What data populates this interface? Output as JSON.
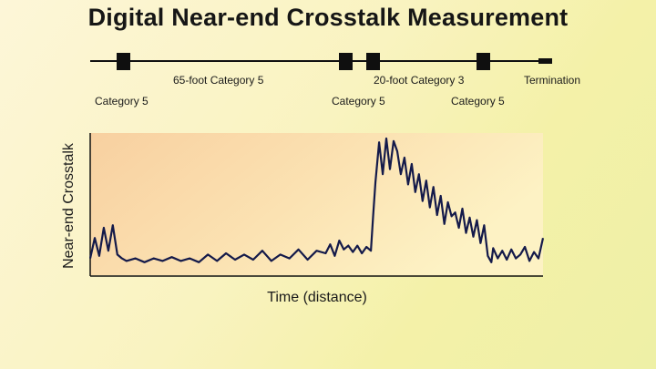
{
  "title": "Digital Near-end Crosstalk Measurement",
  "cable": {
    "labels": {
      "segment_65": "65-foot Category 5",
      "segment_20": "20-foot Category 3",
      "connector_1": "Category 5",
      "connector_2": "Category 5",
      "connector_4": "Category 5",
      "termination": "Termination"
    }
  },
  "chart_data": {
    "type": "line",
    "title": "",
    "xlabel": "Time (distance)",
    "ylabel": "Near-end Crosstalk",
    "xlim": [
      0,
      100
    ],
    "ylim": [
      0,
      100
    ],
    "grid": false,
    "series": [
      {
        "x": [
          0,
          1,
          2,
          3,
          4,
          5,
          6,
          7,
          8,
          10,
          12,
          14,
          16,
          18,
          20,
          22,
          24,
          26,
          28,
          30,
          32,
          34,
          36,
          38,
          40,
          42,
          44,
          46,
          48,
          50,
          52,
          53,
          54,
          55,
          56,
          57,
          58,
          59,
          60,
          61,
          62,
          62.5,
          63,
          63.8,
          64.6,
          65.4,
          66.2,
          67,
          67.8,
          68.6,
          69.4,
          70.2,
          71,
          71.8,
          72.6,
          73.4,
          74.2,
          75,
          75.8,
          76.6,
          77.4,
          78.2,
          79,
          79.8,
          80.6,
          81.4,
          82.2,
          83,
          83.8,
          84.6,
          85.4,
          86.2,
          87,
          87.8,
          88.6,
          89,
          90,
          91,
          92,
          93,
          94,
          95,
          96,
          97,
          98,
          99,
          100
        ],
        "values": [
          6,
          22,
          8,
          30,
          12,
          32,
          9,
          6,
          4,
          6,
          3,
          6,
          4,
          7,
          4,
          6,
          3,
          9,
          4,
          10,
          5,
          9,
          5,
          12,
          4,
          9,
          6,
          13,
          5,
          12,
          10,
          17,
          8,
          20,
          13,
          16,
          11,
          16,
          10,
          15,
          12,
          40,
          66,
          97,
          72,
          100,
          76,
          98,
          90,
          72,
          85,
          64,
          80,
          58,
          72,
          51,
          67,
          46,
          62,
          40,
          55,
          33,
          50,
          39,
          42,
          30,
          45,
          26,
          38,
          23,
          36,
          18,
          32,
          8,
          3,
          14,
          6,
          12,
          5,
          13,
          6,
          9,
          15,
          4,
          11,
          6,
          22
        ]
      }
    ]
  }
}
